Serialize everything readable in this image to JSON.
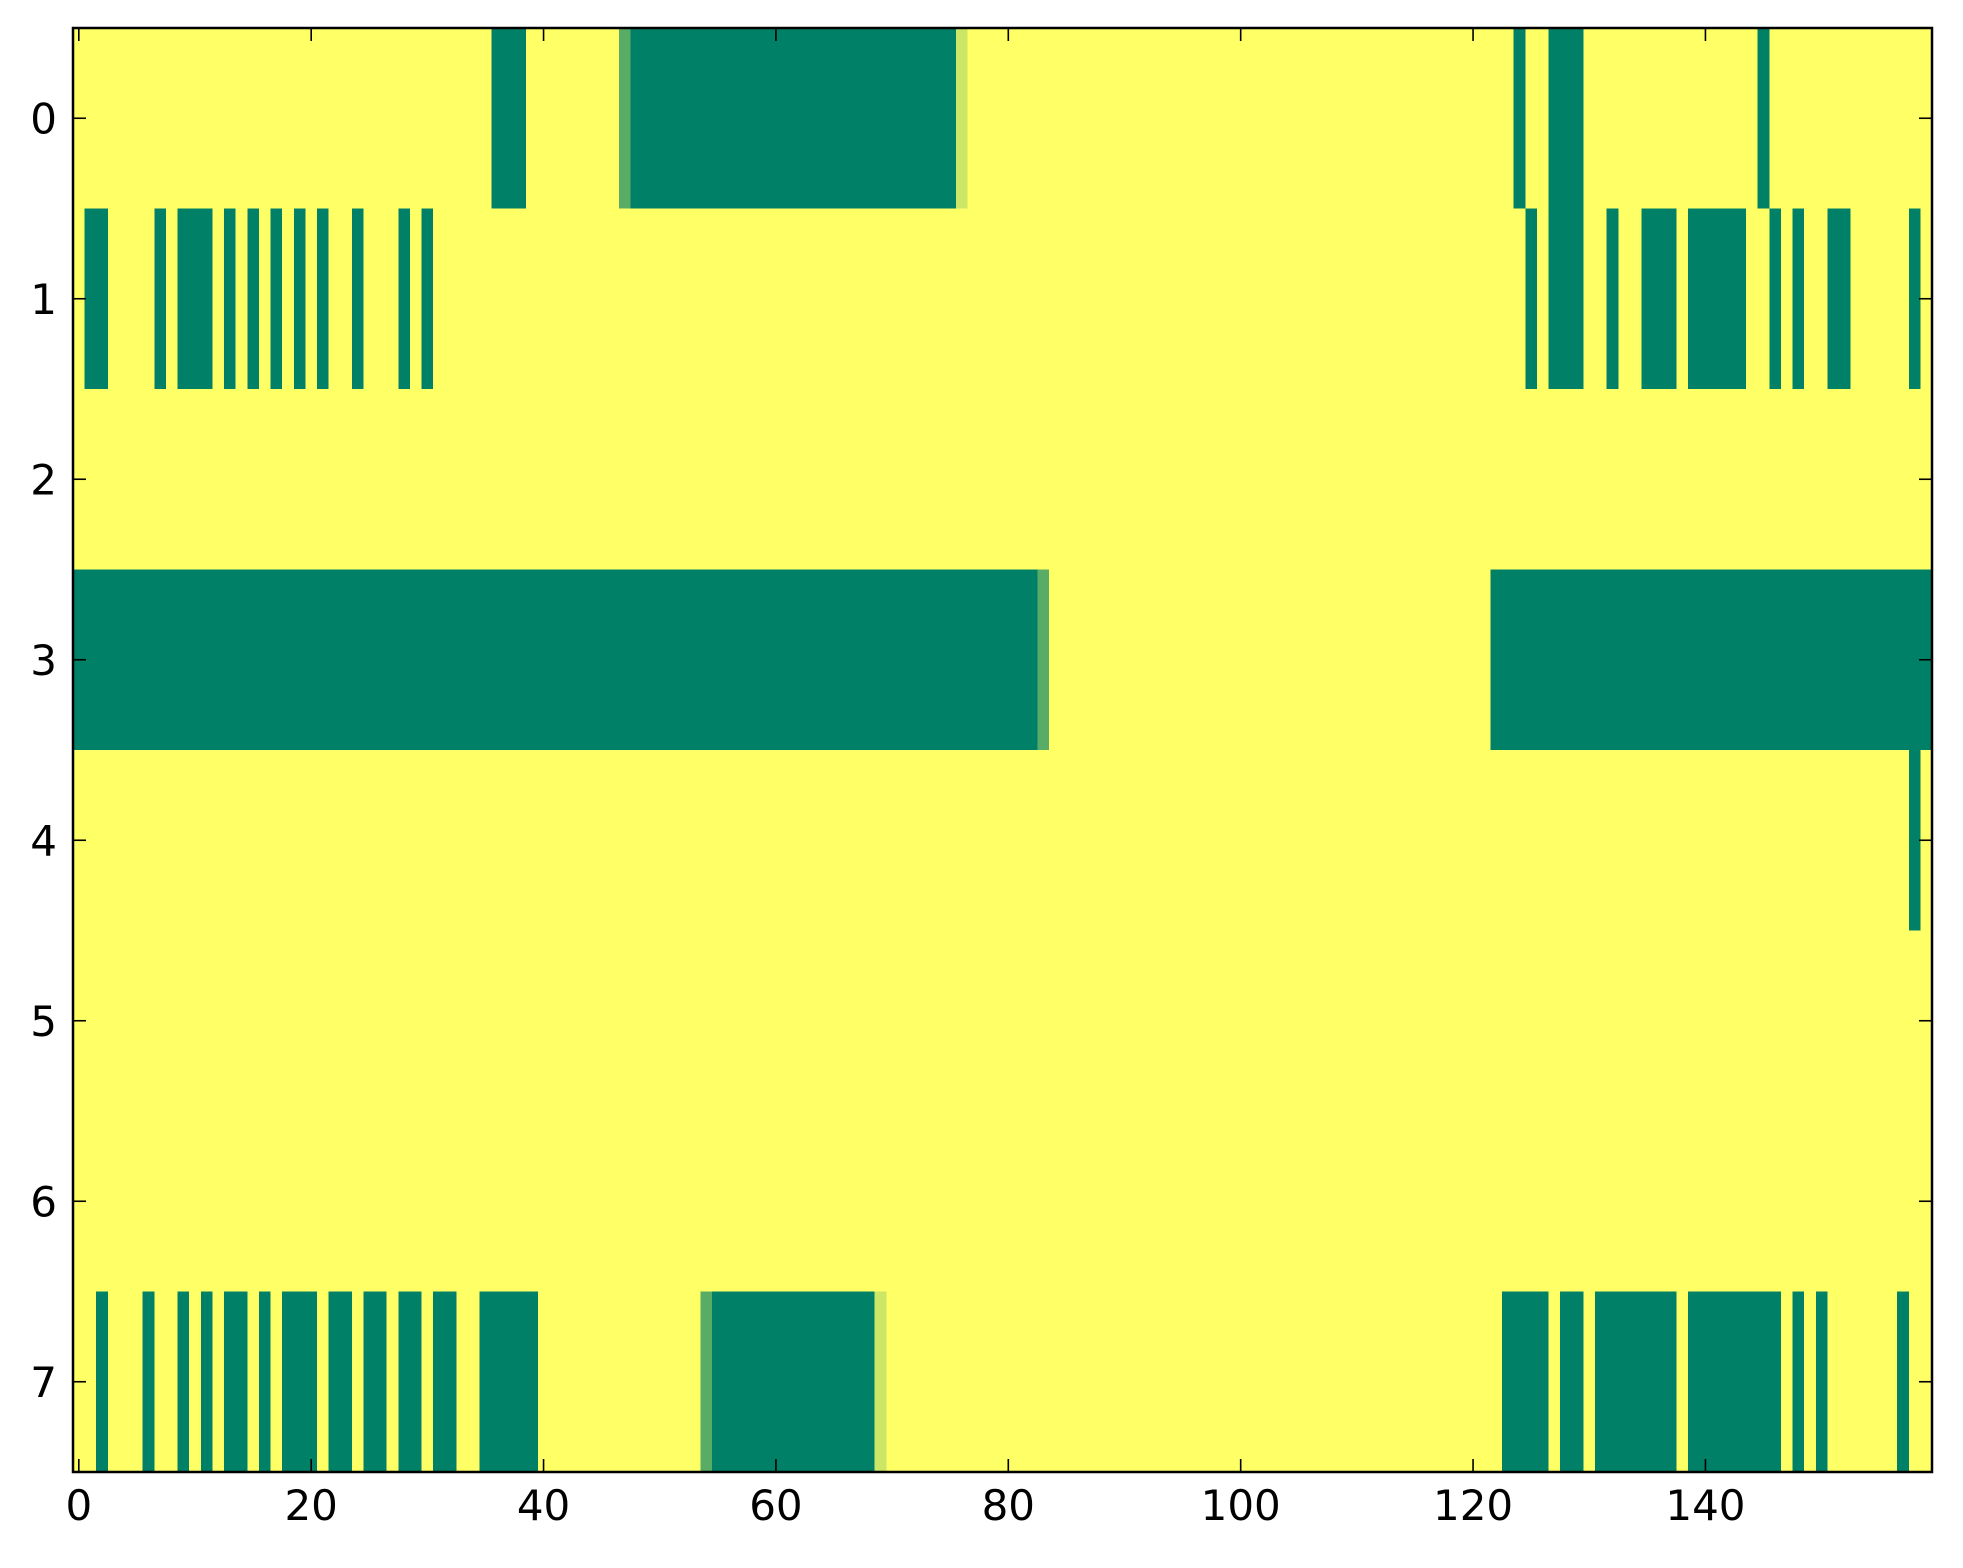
{
  "chart_data": {
    "type": "heatmap",
    "title": "",
    "xlabel": "",
    "ylabel": "",
    "xlim": [
      -0.5,
      159.5
    ],
    "ylim": [
      7.5,
      -0.5
    ],
    "xticks": [
      0,
      20,
      40,
      60,
      80,
      100,
      120,
      140
    ],
    "xtick_labels": [
      "0",
      "20",
      "40",
      "60",
      "80",
      "100",
      "120",
      "140"
    ],
    "yticks": [
      0,
      1,
      2,
      3,
      4,
      5,
      6,
      7
    ],
    "ytick_labels": [
      "0",
      "1",
      "2",
      "3",
      "4",
      "5",
      "6",
      "7"
    ],
    "grid": false,
    "colormap": "summer",
    "background_value": 1.0,
    "colors": {
      "low": "#008066",
      "high": "#ffff66",
      "mid_dark": "#59ac66",
      "mid_light": "#d4ea66",
      "axes": "#000000"
    },
    "value_range": [
      0,
      1
    ],
    "rows": [
      {
        "row": 0,
        "segments": [
          {
            "start": 36,
            "end": 38,
            "value": 0
          },
          {
            "start": 47,
            "end": 47,
            "value": 0.35
          },
          {
            "start": 48,
            "end": 75,
            "value": 0
          },
          {
            "start": 76,
            "end": 76,
            "value": 0.8
          },
          {
            "start": 124,
            "end": 124,
            "value": 0
          },
          {
            "start": 127,
            "end": 129,
            "value": 0
          },
          {
            "start": 145,
            "end": 145,
            "value": 0
          }
        ]
      },
      {
        "row": 1,
        "segments": [
          {
            "start": 1,
            "end": 2,
            "value": 0
          },
          {
            "start": 7,
            "end": 7,
            "value": 0
          },
          {
            "start": 9,
            "end": 11,
            "value": 0
          },
          {
            "start": 13,
            "end": 13,
            "value": 0
          },
          {
            "start": 15,
            "end": 15,
            "value": 0
          },
          {
            "start": 17,
            "end": 17,
            "value": 0
          },
          {
            "start": 19,
            "end": 19,
            "value": 0
          },
          {
            "start": 21,
            "end": 21,
            "value": 0
          },
          {
            "start": 24,
            "end": 24,
            "value": 0
          },
          {
            "start": 28,
            "end": 28,
            "value": 0
          },
          {
            "start": 30,
            "end": 30,
            "value": 0
          },
          {
            "start": 125,
            "end": 125,
            "value": 0
          },
          {
            "start": 127,
            "end": 129,
            "value": 0
          },
          {
            "start": 132,
            "end": 132,
            "value": 0
          },
          {
            "start": 135,
            "end": 137,
            "value": 0
          },
          {
            "start": 139,
            "end": 143,
            "value": 0
          },
          {
            "start": 146,
            "end": 146,
            "value": 0
          },
          {
            "start": 148,
            "end": 148,
            "value": 0
          },
          {
            "start": 151,
            "end": 152,
            "value": 0
          },
          {
            "start": 158,
            "end": 158,
            "value": 0
          }
        ]
      },
      {
        "row": 2,
        "segments": []
      },
      {
        "row": 3,
        "segments": [
          {
            "start": -0.5,
            "end": 82,
            "value": 0
          },
          {
            "start": 83,
            "end": 83,
            "value": 0.35
          },
          {
            "start": 122,
            "end": 159.5,
            "value": 0
          }
        ]
      },
      {
        "row": 4,
        "segments": [
          {
            "start": 158,
            "end": 158,
            "value": 0
          }
        ]
      },
      {
        "row": 5,
        "segments": []
      },
      {
        "row": 6,
        "segments": []
      },
      {
        "row": 7,
        "segments": [
          {
            "start": 2,
            "end": 2,
            "value": 0
          },
          {
            "start": 6,
            "end": 6,
            "value": 0
          },
          {
            "start": 9,
            "end": 9,
            "value": 0
          },
          {
            "start": 11,
            "end": 11,
            "value": 0
          },
          {
            "start": 13,
            "end": 14,
            "value": 0
          },
          {
            "start": 16,
            "end": 16,
            "value": 0
          },
          {
            "start": 18,
            "end": 20,
            "value": 0
          },
          {
            "start": 22,
            "end": 23,
            "value": 0
          },
          {
            "start": 25,
            "end": 26,
            "value": 0
          },
          {
            "start": 28,
            "end": 29,
            "value": 0
          },
          {
            "start": 31,
            "end": 32,
            "value": 0
          },
          {
            "start": 35,
            "end": 39,
            "value": 0
          },
          {
            "start": 54,
            "end": 54,
            "value": 0.35
          },
          {
            "start": 55,
            "end": 68,
            "value": 0
          },
          {
            "start": 69,
            "end": 69,
            "value": 0.8
          },
          {
            "start": 123,
            "end": 126,
            "value": 0
          },
          {
            "start": 128,
            "end": 129,
            "value": 0
          },
          {
            "start": 131,
            "end": 137,
            "value": 0
          },
          {
            "start": 139,
            "end": 146,
            "value": 0
          },
          {
            "start": 148,
            "end": 148,
            "value": 0
          },
          {
            "start": 150,
            "end": 150,
            "value": 0
          },
          {
            "start": 157,
            "end": 157,
            "value": 0
          }
        ]
      }
    ]
  }
}
